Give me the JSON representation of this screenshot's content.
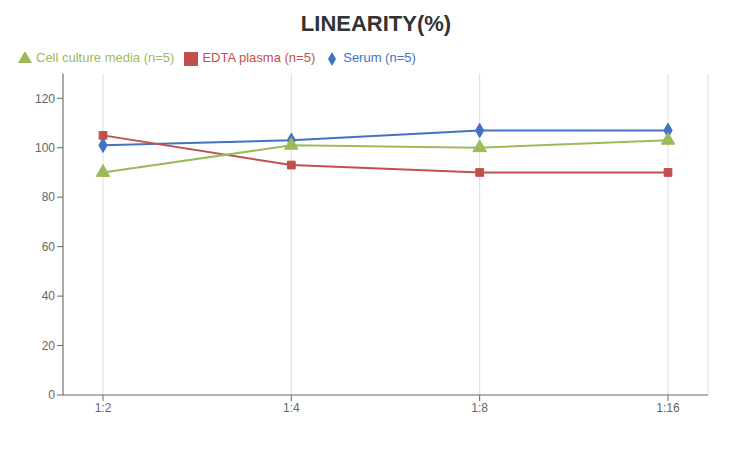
{
  "chart_data": {
    "type": "line",
    "title": "LINEARITY(%)",
    "categories": [
      "1:2",
      "1:4",
      "1:8",
      "1:16"
    ],
    "series": [
      {
        "name": "Serum (n=5)",
        "color": "#4472C4",
        "marker": "diamond",
        "values": [
          101,
          103,
          107,
          107
        ]
      },
      {
        "name": "EDTA plasma (n=5)",
        "color": "#C0504D",
        "marker": "square",
        "values": [
          105,
          93,
          90,
          90
        ]
      },
      {
        "name": "Cell culture media (n=5)",
        "color": "#9BBB59",
        "marker": "triangle",
        "values": [
          90,
          101,
          100,
          103
        ]
      }
    ],
    "ylim": [
      0,
      130
    ],
    "yticks": [
      0,
      20,
      40,
      60,
      80,
      100,
      120
    ],
    "grid": true,
    "legend": "upper left"
  }
}
